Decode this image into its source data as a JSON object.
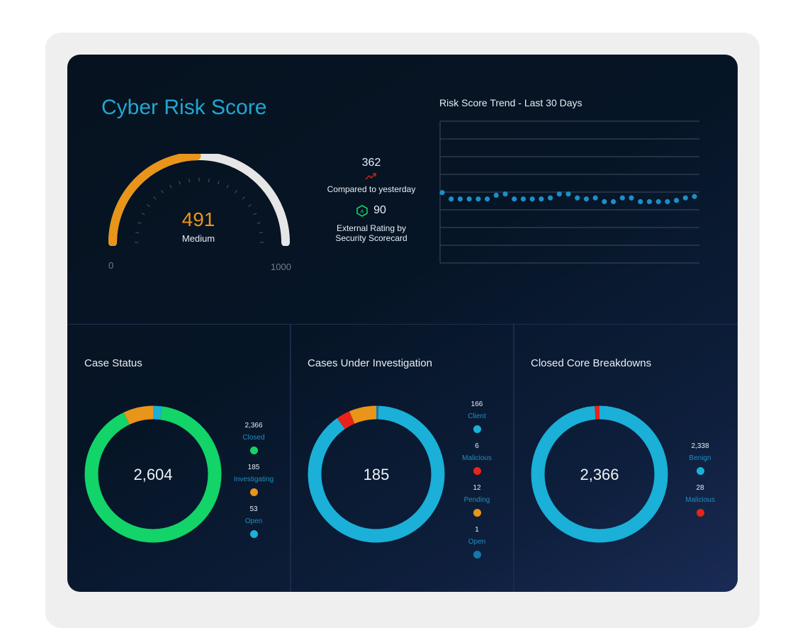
{
  "title": "Cyber Risk Score",
  "gauge": {
    "score": "491",
    "level": "Medium",
    "min": "0",
    "max": "1000",
    "value": 491,
    "range": [
      0,
      1000
    ],
    "fill_color": "#e8951a",
    "track_color": "#e6e6e6"
  },
  "stats": {
    "change_value": "362",
    "change_label": "Compared to yesterday",
    "change_icon": "trend-up-icon",
    "rating_value": "90",
    "rating_badge": "A",
    "rating_label_1": "External Rating by",
    "rating_label_2": "Security Scorecard"
  },
  "chart_data": {
    "type": "scatter",
    "title": "Risk Score Trend - Last 30 Days",
    "xlabel": "",
    "ylabel": "",
    "ylim": [
      0,
      800
    ],
    "grid": true,
    "x": [
      1,
      2,
      3,
      4,
      5,
      6,
      7,
      8,
      9,
      10,
      11,
      12,
      13,
      14,
      15,
      16,
      17,
      18,
      19,
      20,
      21,
      22,
      23,
      24,
      25,
      26,
      27,
      28,
      29
    ],
    "values": [
      397,
      361,
      361,
      361,
      361,
      361,
      382,
      389,
      361,
      361,
      361,
      361,
      367,
      389,
      389,
      367,
      361,
      367,
      346,
      346,
      367,
      367,
      346,
      346,
      346,
      346,
      353,
      367,
      375
    ],
    "color": "#1a8fc8"
  },
  "cards": [
    {
      "title": "Case Status",
      "center": "2,604",
      "segments": [
        {
          "value": "2,366",
          "label": "Closed",
          "n": 2366,
          "color": "#12d468"
        },
        {
          "value": "185",
          "label": "Investigating",
          "n": 185,
          "color": "#e8951a"
        },
        {
          "value": "53",
          "label": "Open",
          "n": 53,
          "color": "#1ab0d8"
        }
      ]
    },
    {
      "title": "Cases Under Investigation",
      "center": "185",
      "segments": [
        {
          "value": "166",
          "label": "Client",
          "n": 166,
          "color": "#1ab0d8"
        },
        {
          "value": "6",
          "label": "Malicious",
          "n": 6,
          "color": "#e8231a"
        },
        {
          "value": "12",
          "label": "Pending",
          "n": 12,
          "color": "#e8951a"
        },
        {
          "value": "1",
          "label": "Open",
          "n": 1,
          "color": "#1479a8"
        }
      ]
    },
    {
      "title": "Closed Core Breakdowns",
      "center": "2,366",
      "segments": [
        {
          "value": "2,338",
          "label": "Benign",
          "n": 2338,
          "color": "#1ab0d8"
        },
        {
          "value": "28",
          "label": "Malicious",
          "n": 28,
          "color": "#e8231a"
        }
      ]
    }
  ]
}
